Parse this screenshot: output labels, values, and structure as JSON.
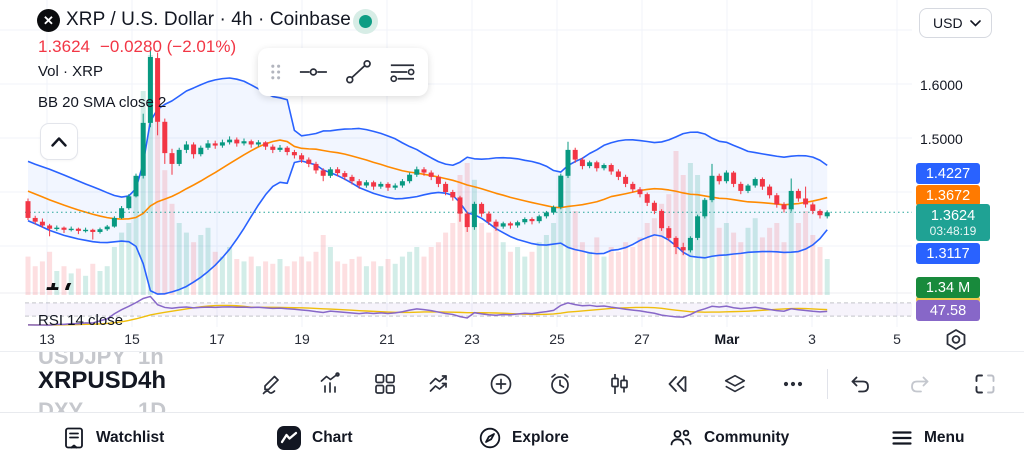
{
  "header": {
    "symbol_title": "XRP / U.S. Dollar · 4h · Coinbase",
    "last_price_text": "1.3624",
    "change_text": "−0.0280 (−2.01%)",
    "vol_label": "Vol · XRP",
    "bb_label": "BB 20 SMA close 2",
    "rsi_label": "RSI 14 close",
    "currency": "USD",
    "market_status_color": "#0e9d84",
    "clipped_fragment": "17"
  },
  "price_scale": {
    "levels": [
      "1.6000",
      "1.5000"
    ],
    "badges": {
      "bb_upper": {
        "value": "1.4227",
        "color": "#2962FF"
      },
      "bb_basis": {
        "value": "1.3672",
        "color": "#FF7A00"
      },
      "last": {
        "value": "1.3624",
        "countdown": "03:48:19",
        "color": "#1FA294"
      },
      "bb_lower": {
        "value": "1.3117",
        "color": "#2962FF"
      },
      "volume": {
        "value": "1.34 M",
        "color": "#188A3C"
      },
      "rsi": {
        "value": "47.58",
        "color": "#8767C8"
      }
    }
  },
  "time_axis": {
    "ticks": [
      {
        "label": "13"
      },
      {
        "label": "15"
      },
      {
        "label": "17"
      },
      {
        "label": "19"
      },
      {
        "label": "21"
      },
      {
        "label": "23"
      },
      {
        "label": "25"
      },
      {
        "label": "27"
      },
      {
        "label": "Mar",
        "bold": true
      },
      {
        "label": "3"
      },
      {
        "label": "5"
      }
    ]
  },
  "picker": {
    "prev": {
      "symbol": "USDJPY",
      "interval": "1h"
    },
    "current": {
      "symbol": "XRPUSD",
      "interval": "4h"
    },
    "next": {
      "symbol": "DXY",
      "interval": "1D"
    }
  },
  "chart_toolbar": {
    "icons": [
      "draw",
      "indicators",
      "layouts",
      "compare",
      "add",
      "alert",
      "chart-type",
      "bar-replay",
      "object-tree",
      "more",
      "undo",
      "redo",
      "fullscreen"
    ],
    "redo_disabled": true
  },
  "drawing_toolbar": {
    "icons": [
      "drag-handle",
      "horizontal-line-tool",
      "trend-line-tool",
      "parallel-lines-tool"
    ]
  },
  "bottom_nav": {
    "items": [
      {
        "label": "Watchlist",
        "icon": "watchlist",
        "active": false
      },
      {
        "label": "Chart",
        "icon": "chart",
        "active": true
      },
      {
        "label": "Explore",
        "icon": "explore",
        "active": false
      },
      {
        "label": "Community",
        "icon": "community",
        "active": false
      },
      {
        "label": "Menu",
        "icon": "menu",
        "active": false
      }
    ]
  },
  "chart_data": {
    "type": "candlestick",
    "symbol": "XRPUSD",
    "exchange": "Coinbase",
    "interval": "4h",
    "last_price": 1.3624,
    "change": -0.028,
    "change_pct": -2.01,
    "price_axis": {
      "min": 1.27,
      "max": 1.7,
      "labeled_levels": [
        1.6,
        1.5
      ]
    },
    "time_tick_labels": [
      "13",
      "15",
      "17",
      "19",
      "21",
      "23",
      "25",
      "27",
      "Mar",
      "3",
      "5"
    ],
    "indicators": [
      {
        "name": "BB",
        "params": "20 SMA close 2",
        "upper": 1.4227,
        "basis": 1.3672,
        "lower": 1.3117
      },
      {
        "name": "Vol",
        "source": "XRP",
        "current_label": "1.34 M"
      },
      {
        "name": "RSI",
        "params": "14 close",
        "current": 47.58,
        "levels": [
          70,
          30
        ]
      }
    ],
    "colors": {
      "up": "#089981",
      "down": "#F23645",
      "bb_line": "#2962FF",
      "bb_fill": "rgba(41,98,255,0.06)",
      "basis_line": "#FF8A00",
      "price_line": "#26A69A",
      "rsi_line": "#8767C8",
      "rsi_ma_line": "#EFBE0D",
      "grid": "#F0F3FA"
    },
    "warmup_closes": [
      1.458,
      1.452,
      1.446,
      1.44,
      1.434,
      1.428,
      1.422,
      1.416,
      1.41,
      1.404,
      1.398,
      1.394,
      1.39,
      1.386,
      1.383,
      1.38,
      1.377,
      1.374,
      1.372,
      1.375
    ],
    "candles": [
      [
        1.383,
        1.388,
        1.348,
        1.352
      ],
      [
        1.352,
        1.356,
        1.34,
        1.345
      ],
      [
        1.345,
        1.351,
        1.334,
        1.338
      ],
      [
        1.338,
        1.341,
        1.318,
        1.332
      ],
      [
        1.332,
        1.338,
        1.328,
        1.334
      ],
      [
        1.334,
        1.336,
        1.324,
        1.33
      ],
      [
        1.33,
        1.336,
        1.327,
        1.332
      ],
      [
        1.332,
        1.334,
        1.322,
        1.328
      ],
      [
        1.328,
        1.334,
        1.325,
        1.33
      ],
      [
        1.33,
        1.332,
        1.312,
        1.326
      ],
      [
        1.326,
        1.334,
        1.323,
        1.331
      ],
      [
        1.331,
        1.339,
        1.328,
        1.336
      ],
      [
        1.336,
        1.355,
        1.334,
        1.352
      ],
      [
        1.352,
        1.374,
        1.35,
        1.37
      ],
      [
        1.37,
        1.396,
        1.367,
        1.392
      ],
      [
        1.392,
        1.434,
        1.39,
        1.43
      ],
      [
        1.43,
        1.545,
        1.425,
        1.528
      ],
      [
        1.528,
        1.662,
        1.52,
        1.65
      ],
      [
        1.648,
        1.658,
        1.505,
        1.53
      ],
      [
        1.53,
        1.536,
        1.452,
        1.472
      ],
      [
        1.472,
        1.48,
        1.432,
        1.452
      ],
      [
        1.452,
        1.482,
        1.448,
        1.478
      ],
      [
        1.478,
        1.494,
        1.472,
        1.488
      ],
      [
        1.488,
        1.492,
        1.462,
        1.47
      ],
      [
        1.47,
        1.486,
        1.466,
        1.482
      ],
      [
        1.482,
        1.496,
        1.478,
        1.49
      ],
      [
        1.49,
        1.495,
        1.48,
        1.486
      ],
      [
        1.486,
        1.497,
        1.482,
        1.492
      ],
      [
        1.492,
        1.503,
        1.488,
        1.497
      ],
      [
        1.497,
        1.501,
        1.484,
        1.49
      ],
      [
        1.49,
        1.499,
        1.486,
        1.494
      ],
      [
        1.494,
        1.497,
        1.482,
        1.488
      ],
      [
        1.488,
        1.496,
        1.484,
        1.492
      ],
      [
        1.492,
        1.494,
        1.478,
        1.484
      ],
      [
        1.484,
        1.488,
        1.472,
        1.478
      ],
      [
        1.478,
        1.487,
        1.474,
        1.482
      ],
      [
        1.482,
        1.485,
        1.468,
        1.474
      ],
      [
        1.474,
        1.478,
        1.462,
        1.468
      ],
      [
        1.468,
        1.472,
        1.454,
        1.46
      ],
      [
        1.46,
        1.464,
        1.446,
        1.452
      ],
      [
        1.452,
        1.456,
        1.434,
        1.44
      ],
      [
        1.44,
        1.444,
        1.42,
        1.43
      ],
      [
        1.43,
        1.446,
        1.426,
        1.442
      ],
      [
        1.442,
        1.446,
        1.429,
        1.435
      ],
      [
        1.435,
        1.439,
        1.422,
        1.428
      ],
      [
        1.428,
        1.432,
        1.414,
        1.42
      ],
      [
        1.42,
        1.424,
        1.406,
        1.412
      ],
      [
        1.412,
        1.422,
        1.408,
        1.418
      ],
      [
        1.418,
        1.421,
        1.404,
        1.41
      ],
      [
        1.41,
        1.419,
        1.406,
        1.415
      ],
      [
        1.415,
        1.418,
        1.402,
        1.408
      ],
      [
        1.408,
        1.416,
        1.404,
        1.412
      ],
      [
        1.412,
        1.424,
        1.408,
        1.42
      ],
      [
        1.42,
        1.436,
        1.416,
        1.432
      ],
      [
        1.432,
        1.447,
        1.428,
        1.442
      ],
      [
        1.442,
        1.446,
        1.43,
        1.436
      ],
      [
        1.436,
        1.44,
        1.422,
        1.428
      ],
      [
        1.428,
        1.432,
        1.409,
        1.415
      ],
      [
        1.415,
        1.419,
        1.394,
        1.4
      ],
      [
        1.4,
        1.404,
        1.384,
        1.39
      ],
      [
        1.39,
        1.393,
        1.345,
        1.36
      ],
      [
        1.36,
        1.364,
        1.326,
        1.335
      ],
      [
        1.335,
        1.382,
        1.33,
        1.378
      ],
      [
        1.378,
        1.381,
        1.354,
        1.36
      ],
      [
        1.36,
        1.364,
        1.339,
        1.345
      ],
      [
        1.345,
        1.349,
        1.328,
        1.336
      ],
      [
        1.336,
        1.345,
        1.332,
        1.342
      ],
      [
        1.342,
        1.345,
        1.332,
        1.338
      ],
      [
        1.338,
        1.347,
        1.334,
        1.344
      ],
      [
        1.344,
        1.353,
        1.34,
        1.35
      ],
      [
        1.35,
        1.353,
        1.34,
        1.346
      ],
      [
        1.346,
        1.358,
        1.342,
        1.355
      ],
      [
        1.355,
        1.365,
        1.351,
        1.362
      ],
      [
        1.362,
        1.375,
        1.358,
        1.372
      ],
      [
        1.372,
        1.434,
        1.368,
        1.43
      ],
      [
        1.43,
        1.493,
        1.426,
        1.478
      ],
      [
        1.478,
        1.482,
        1.454,
        1.46
      ],
      [
        1.46,
        1.464,
        1.442,
        1.448
      ],
      [
        1.448,
        1.458,
        1.444,
        1.455
      ],
      [
        1.455,
        1.458,
        1.438,
        1.444
      ],
      [
        1.444,
        1.453,
        1.44,
        1.45
      ],
      [
        1.45,
        1.453,
        1.432,
        1.438
      ],
      [
        1.438,
        1.442,
        1.422,
        1.428
      ],
      [
        1.428,
        1.432,
        1.409,
        1.415
      ],
      [
        1.415,
        1.419,
        1.399,
        1.405
      ],
      [
        1.405,
        1.409,
        1.39,
        1.396
      ],
      [
        1.396,
        1.399,
        1.374,
        1.38
      ],
      [
        1.38,
        1.384,
        1.359,
        1.365
      ],
      [
        1.365,
        1.368,
        1.328,
        1.333
      ],
      [
        1.333,
        1.337,
        1.31,
        1.315
      ],
      [
        1.315,
        1.318,
        1.285,
        1.298
      ],
      [
        1.298,
        1.306,
        1.283,
        1.292
      ],
      [
        1.292,
        1.318,
        1.288,
        1.315
      ],
      [
        1.315,
        1.358,
        1.311,
        1.355
      ],
      [
        1.355,
        1.389,
        1.351,
        1.385
      ],
      [
        1.385,
        1.452,
        1.381,
        1.43
      ],
      [
        1.43,
        1.434,
        1.414,
        1.42
      ],
      [
        1.42,
        1.44,
        1.416,
        1.436
      ],
      [
        1.436,
        1.439,
        1.409,
        1.415
      ],
      [
        1.415,
        1.419,
        1.396,
        1.402
      ],
      [
        1.402,
        1.415,
        1.398,
        1.412
      ],
      [
        1.412,
        1.427,
        1.408,
        1.424
      ],
      [
        1.424,
        1.427,
        1.404,
        1.41
      ],
      [
        1.41,
        1.414,
        1.388,
        1.394
      ],
      [
        1.394,
        1.398,
        1.371,
        1.377
      ],
      [
        1.377,
        1.381,
        1.362,
        1.368
      ],
      [
        1.368,
        1.425,
        1.364,
        1.402
      ],
      [
        1.402,
        1.406,
        1.382,
        1.388
      ],
      [
        1.388,
        1.41,
        1.371,
        1.377
      ],
      [
        1.377,
        1.381,
        1.359,
        1.365
      ],
      [
        1.365,
        1.368,
        1.351,
        1.357
      ],
      [
        1.355,
        1.366,
        1.351,
        1.3624
      ]
    ],
    "volume_rel": [
      0.16,
      0.12,
      0.14,
      0.18,
      0.1,
      0.12,
      0.09,
      0.11,
      0.08,
      0.13,
      0.1,
      0.12,
      0.2,
      0.26,
      0.3,
      0.45,
      0.85,
      1.0,
      0.97,
      0.52,
      0.38,
      0.3,
      0.26,
      0.22,
      0.25,
      0.28,
      0.18,
      0.16,
      0.2,
      0.15,
      0.14,
      0.16,
      0.12,
      0.14,
      0.13,
      0.15,
      0.12,
      0.14,
      0.16,
      0.14,
      0.18,
      0.25,
      0.2,
      0.14,
      0.13,
      0.15,
      0.16,
      0.12,
      0.14,
      0.12,
      0.15,
      0.13,
      0.16,
      0.18,
      0.2,
      0.16,
      0.2,
      0.22,
      0.26,
      0.3,
      0.5,
      0.55,
      0.48,
      0.3,
      0.26,
      0.3,
      0.22,
      0.18,
      0.2,
      0.16,
      0.18,
      0.22,
      0.25,
      0.3,
      0.5,
      0.55,
      0.35,
      0.22,
      0.18,
      0.24,
      0.16,
      0.2,
      0.18,
      0.22,
      0.2,
      0.24,
      0.3,
      0.32,
      0.38,
      0.42,
      0.6,
      0.5,
      0.55,
      0.5,
      0.4,
      0.45,
      0.28,
      0.3,
      0.26,
      0.22,
      0.28,
      0.32,
      0.24,
      0.28,
      0.3,
      0.22,
      0.4,
      0.3,
      0.35,
      0.25,
      0.2,
      0.15
    ]
  }
}
